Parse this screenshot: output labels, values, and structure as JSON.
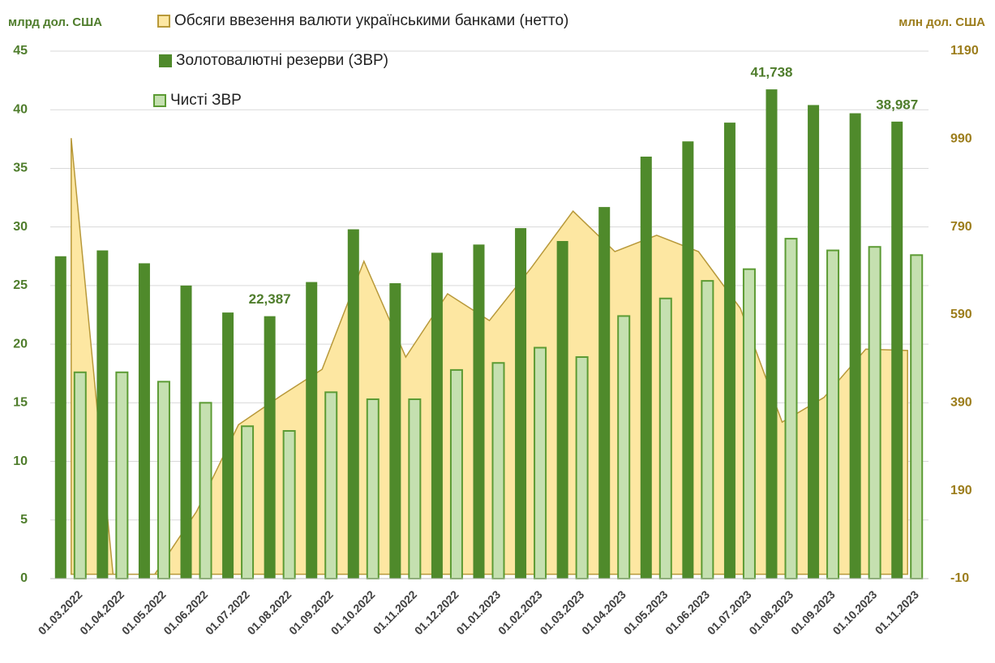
{
  "chart_data": {
    "type": "bar",
    "y_label": "млрд дол. США",
    "y2_label": "млн дол. США",
    "categories": [
      "01.03.2022",
      "01.04.2022",
      "01.05.2022",
      "01.06.2022",
      "01.07.2022",
      "01.08.2022",
      "01.09.2022",
      "01.10.2022",
      "01.11.2022",
      "01.12.2022",
      "01.01.2023",
      "01.02.2023",
      "01.03.2023",
      "01.04.2023",
      "01.05.2023",
      "01.06.2023",
      "01.07.2023",
      "01.08.2023",
      "01.09.2023",
      "01.10.2023",
      "01.11.2023"
    ],
    "ylim": [
      0,
      45
    ],
    "yticks": [
      0,
      5,
      10,
      15,
      20,
      25,
      30,
      35,
      40,
      45
    ],
    "y2lim": [
      -10,
      1190
    ],
    "y2ticks": [
      -10,
      190,
      390,
      590,
      790,
      990,
      1190
    ],
    "grid": true,
    "series": [
      {
        "name": "Обсяги ввезення валюти українськими банками (нетто)",
        "type": "area",
        "axis": "y2",
        "color": "#fde7a2",
        "line_color": "#b8993a",
        "values": [
          992,
          0,
          0,
          143,
          340,
          405,
          466,
          712,
          494,
          638,
          577,
          697,
          826,
          734,
          771,
          734,
          605,
          346,
          402,
          512,
          509
        ]
      },
      {
        "name": "Золотовалютні резерви (ЗВР)",
        "type": "bar",
        "color": "#4f8a2b",
        "values": [
          27.5,
          28.0,
          26.9,
          25.0,
          22.7,
          22.387,
          25.3,
          29.8,
          25.2,
          27.8,
          28.5,
          29.9,
          28.8,
          31.7,
          36.0,
          37.3,
          38.9,
          41.738,
          40.4,
          39.7,
          38.987
        ],
        "value_labels": [
          null,
          null,
          null,
          null,
          null,
          "22,387",
          null,
          null,
          null,
          null,
          null,
          null,
          null,
          null,
          null,
          null,
          null,
          "41,738",
          null,
          null,
          "38,987"
        ]
      },
      {
        "name": "Чисті ЗВР",
        "type": "bar",
        "color": "#c5e0b0",
        "line_color": "#5c9b34",
        "values": [
          17.6,
          17.6,
          16.8,
          15.0,
          13.0,
          12.6,
          15.9,
          15.3,
          15.3,
          17.8,
          18.4,
          19.7,
          18.9,
          22.4,
          23.9,
          25.4,
          26.4,
          29.0,
          28.0,
          28.3,
          27.6
        ]
      }
    ]
  }
}
